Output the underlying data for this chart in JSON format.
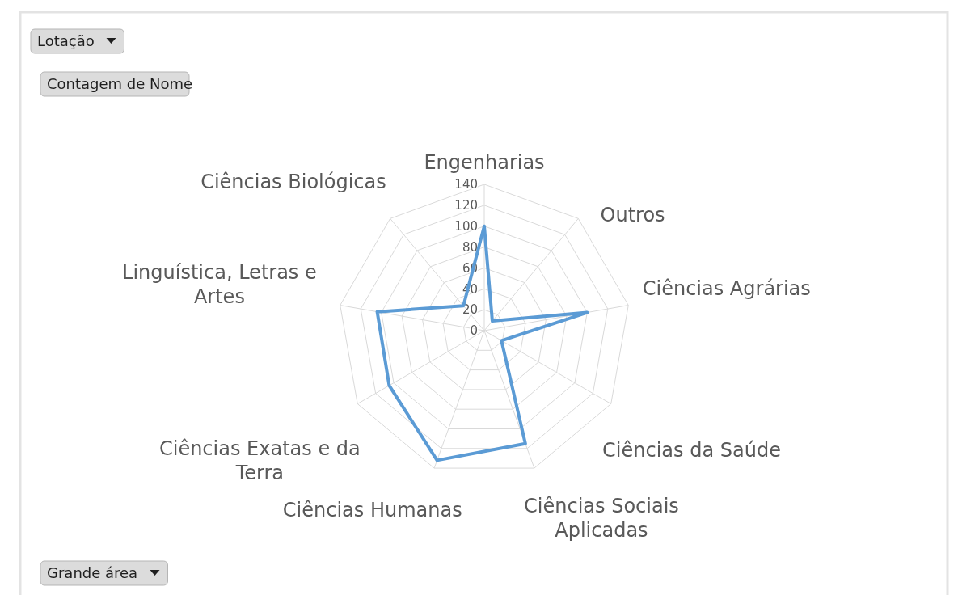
{
  "chart_data": {
    "type": "radar",
    "categories": [
      "Engenharias",
      "Outros",
      "Ciências Agrárias",
      "Ciências da Saúde",
      "Ciências Sociais Aplicadas",
      "Ciências Humanas",
      "Ciências Exatas e da Terra",
      "Linguística, Letras e Artes",
      "Ciências Biológicas"
    ],
    "series": [
      {
        "color": "#5b9bd5",
        "values": [
          100,
          12,
          100,
          19,
          115,
          132,
          105,
          104,
          31
        ]
      }
    ],
    "ylim": [
      0,
      140
    ],
    "yticks": [
      0,
      20,
      40,
      60,
      80,
      100,
      120,
      140
    ],
    "grid": true,
    "marker": "none",
    "annotations": [
      "Lotação",
      "Contagem de Nome",
      "Grande área"
    ]
  }
}
